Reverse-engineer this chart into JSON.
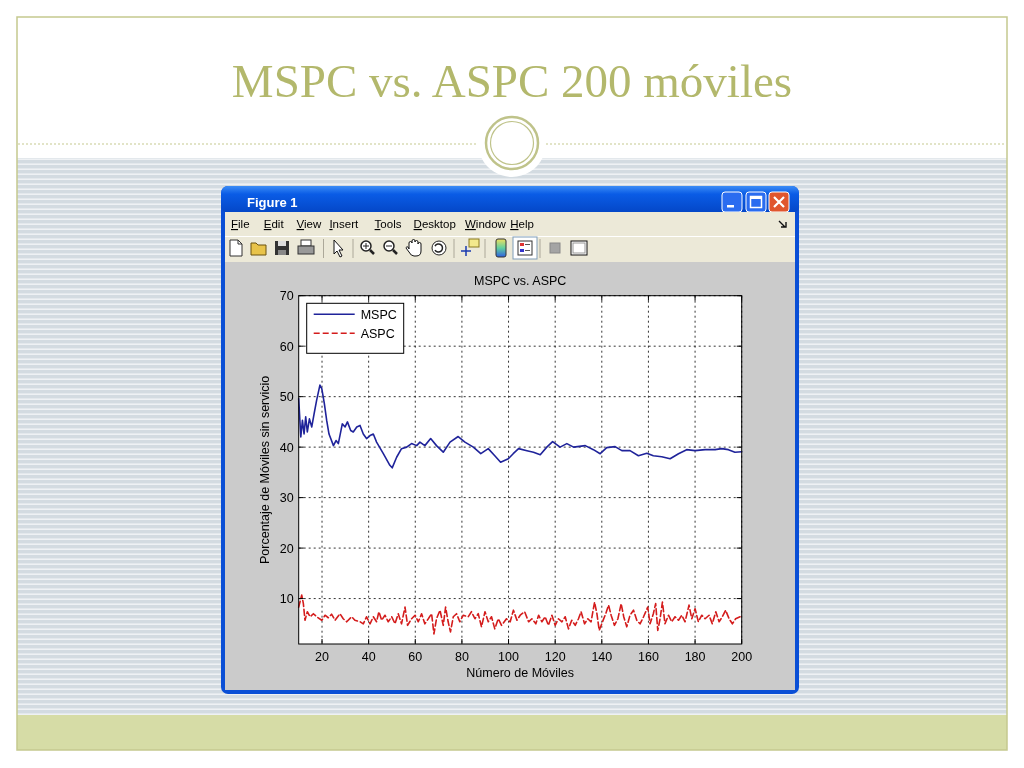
{
  "chart_data": {
    "type": "line",
    "title": "MSPC vs. ASPC 200 móviles",
    "subtitle": "MSPC vs. ASPC",
    "xlabel": "Número de Móviles",
    "ylabel": "Porcentaje de Móviles sin servicio",
    "annotations": [
      "Figure 1",
      "File",
      "Edit",
      "View",
      "Insert",
      "Tools",
      "Desktop",
      "Window",
      "Help"
    ],
    "xlim": [
      10,
      200
    ],
    "ylim": [
      1,
      70
    ],
    "xticks": [
      20,
      40,
      60,
      80,
      100,
      120,
      140,
      160,
      180,
      200
    ],
    "yticks": [
      10,
      20,
      30,
      40,
      50,
      60,
      70
    ],
    "grid": true,
    "legend": "top left",
    "series": [
      {
        "name": "MSPC",
        "color": "#1f239a",
        "line_style": "solid",
        "x": [
          10,
          10.9,
          11.6,
          12.3,
          13,
          13.7,
          14.6,
          15.6,
          16.6,
          17.7,
          19.1,
          19.9,
          21,
          22,
          23,
          24.9,
          26,
          27,
          28.7,
          29.9,
          30.9,
          32.3,
          33.4,
          34.9,
          36.3,
          37.7,
          39.1,
          40.6,
          42,
          43.4,
          46.3,
          49.1,
          50.1,
          52,
          54.1,
          56.3,
          58.4,
          60.6,
          62,
          64.1,
          66.6,
          69.1,
          72,
          74.9,
          78.4,
          81.3,
          84.9,
          88.1,
          91.3,
          94.1,
          96.6,
          99.9,
          102,
          104.3,
          107.9,
          110.7,
          113.6,
          116.4,
          118.9,
          122.1,
          125,
          127.9,
          132.9,
          136.4,
          139.3,
          142.1,
          145.7,
          148.6,
          152.1,
          155.7,
          159.3,
          162.1,
          165.7,
          169.3,
          172.9,
          176.4,
          180,
          184.3,
          188.6,
          191.4,
          194.3,
          197.1,
          200
        ],
        "values": [
          49.6,
          42,
          45.3,
          42.6,
          46,
          43,
          45.6,
          44,
          46.6,
          49.3,
          52.3,
          51.6,
          48.6,
          45.3,
          42.6,
          40.3,
          41.3,
          40.7,
          44.6,
          44,
          45,
          43.3,
          43,
          44,
          44.3,
          42.6,
          41.7,
          42.3,
          42.6,
          41,
          38.7,
          36.4,
          35.9,
          38,
          39.7,
          40,
          40.7,
          40.3,
          41,
          40.3,
          41.7,
          40.3,
          39,
          41,
          42.1,
          41,
          40,
          38.7,
          39.7,
          38.3,
          37,
          37.7,
          38.7,
          39.7,
          39.3,
          39,
          38.5,
          40,
          41.1,
          40,
          40.7,
          40,
          40.3,
          39.5,
          38.7,
          39.9,
          40.1,
          39.3,
          39.3,
          38.3,
          38.8,
          38.3,
          38.1,
          37.7,
          38.7,
          39.5,
          39.3,
          39.5,
          39.5,
          39.7,
          39.5,
          39,
          39.1
        ]
      },
      {
        "name": "ASPC",
        "color": "#d41c1c",
        "line_style": "dashed",
        "x": [
          10,
          11.3,
          12,
          12.7,
          13.7,
          14.9,
          16.3,
          17.7,
          19.9,
          21.3,
          22.7,
          24.1,
          25.6,
          27.7,
          29.1,
          30.6,
          32.7,
          34.1,
          36.3,
          37.7,
          39.1,
          40.6,
          42,
          43.4,
          44.4,
          45.6,
          47,
          48.4,
          49.9,
          51.3,
          52.7,
          54.1,
          55.6,
          56.7,
          58.4,
          59.9,
          61.3,
          62.7,
          64.1,
          65.6,
          67,
          68,
          69.1,
          70.6,
          72,
          73,
          74.1,
          75.1,
          76.3,
          77.7,
          79.1,
          80.6,
          82.7,
          84.1,
          85.6,
          87,
          88.4,
          89.9,
          91.3,
          92.7,
          94.1,
          95.6,
          97,
          99.1,
          100.7,
          102.1,
          103.6,
          105,
          106.9,
          108.6,
          110,
          111.7,
          112.9,
          114.3,
          115.7,
          117.1,
          118.6,
          120,
          121.4,
          122.9,
          124.3,
          125.7,
          127.1,
          128.6,
          130,
          131.1,
          132.6,
          134,
          135.4,
          136.9,
          137.9,
          138.9,
          140.3,
          141.7,
          142.9,
          144,
          145.4,
          146.9,
          148.3,
          149.4,
          150.7,
          152.1,
          153.6,
          155,
          156.4,
          157.9,
          159.7,
          160.7,
          162.1,
          163.1,
          164,
          165,
          166,
          167.1,
          168.6,
          170,
          171.4,
          172.9,
          174.3,
          175.7,
          177.4,
          178.6,
          180,
          181.4,
          182.9,
          184.3,
          186,
          187.4,
          188.9,
          190.3,
          191.7,
          193.1,
          194.6,
          196,
          197.4,
          199.3
        ],
        "values": [
          8.3,
          10.7,
          9,
          5.7,
          7.4,
          6.4,
          7,
          6.4,
          5.7,
          6.7,
          6.2,
          6.9,
          5.7,
          7,
          6,
          5.4,
          6.4,
          5.7,
          5.4,
          5,
          6.4,
          5,
          6.4,
          5.4,
          7.4,
          5.7,
          6.7,
          5.4,
          6.4,
          5,
          7,
          5,
          8.3,
          4.7,
          6,
          6.7,
          5.4,
          7,
          5,
          6,
          7,
          3,
          6,
          7.7,
          4.7,
          8.3,
          5.4,
          3.4,
          6.4,
          7,
          5.4,
          6.7,
          6.4,
          7.4,
          6,
          7,
          4.4,
          7.4,
          5.4,
          6.4,
          4,
          6,
          4.7,
          6,
          5.4,
          7.7,
          5.7,
          6.7,
          7.4,
          5.4,
          6,
          5,
          6.7,
          5.4,
          6.4,
          4.7,
          6.7,
          4.7,
          6,
          5.4,
          6.4,
          4,
          5.7,
          4.7,
          6,
          7.4,
          5,
          6,
          5.4,
          9.3,
          7,
          3.7,
          5.4,
          7,
          8.7,
          6.7,
          4.7,
          6,
          9,
          6.4,
          4.4,
          6.7,
          7.7,
          5.7,
          5,
          6.4,
          8.3,
          5,
          7,
          9,
          3.7,
          6,
          9.3,
          5,
          6.7,
          5.4,
          6.4,
          5.7,
          6.7,
          5.4,
          8.7,
          6,
          8,
          5.4,
          6.7,
          6,
          6.7,
          5,
          7.4,
          5.4,
          6.4,
          7.7,
          6,
          5,
          6,
          6.4
        ]
      }
    ]
  }
}
